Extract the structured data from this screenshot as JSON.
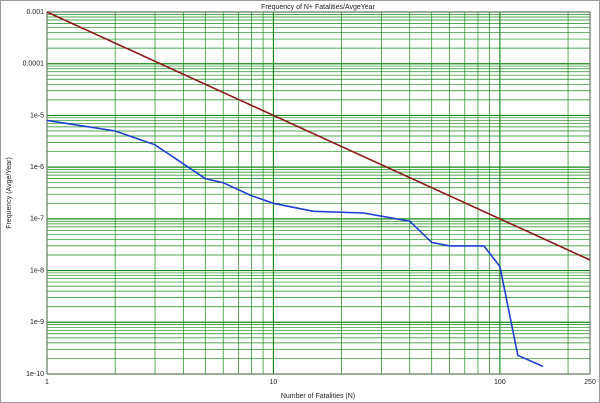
{
  "chart_data": {
    "type": "line",
    "title": "Frequency of N+ Fatalities/AvgeYear",
    "x_label": "Number of Fatalities (N)",
    "y_label": "Frequency (Avge/Year)",
    "x_log": true,
    "y_log": true,
    "grid": true,
    "minor_grid": true,
    "xlim": [
      1,
      250
    ],
    "xticks": [
      1,
      10,
      100,
      250
    ],
    "ylim": [
      1e-10,
      0.001
    ],
    "yticks": [
      0.001,
      0.0001,
      {
        "value": 1e-05,
        "label": "1e-5"
      },
      {
        "value": 1e-06,
        "label": "1e-6"
      },
      1e-07,
      1e-08,
      1e-09,
      1e-10
    ],
    "grid_color": "#1a8a1a",
    "series": [
      {
        "color": "#8b1a1a",
        "x": [
          1,
          250
        ],
        "values": [
          0.001,
          1.6e-08
        ]
      },
      {
        "color": "#1f3fd0",
        "x": [
          1,
          2,
          3,
          5,
          6,
          8,
          10,
          15,
          25,
          40,
          50,
          60,
          85,
          100,
          120,
          155
        ],
        "values": [
          8e-06,
          5e-06,
          2.7e-06,
          6e-07,
          5e-07,
          2.8e-07,
          2e-07,
          1.4e-07,
          1.3e-07,
          9e-08,
          3.5e-08,
          3e-08,
          3e-08,
          1.2e-08,
          2.3e-10,
          1.4e-10
        ]
      }
    ]
  }
}
